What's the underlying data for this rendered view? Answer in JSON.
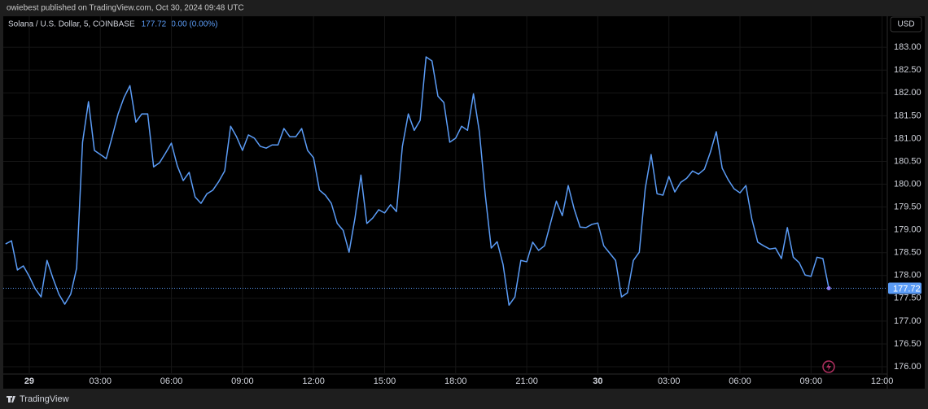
{
  "publisher": "owiebest published on TradingView.com, Oct 30, 2024 09:48 UTC",
  "footer": "TradingView",
  "chart_data": {
    "type": "line",
    "title": "Solana / U.S. Dollar, 5, COINBASE",
    "last_price": 177.72,
    "change": "0.00 (0.00%)",
    "currency": "USD",
    "color": "#5b9cf6",
    "grid": true,
    "xlim": [
      -0.96,
      36.15
    ],
    "xticks": [
      {
        "value": 0,
        "label": "29"
      },
      {
        "value": 3,
        "label": "03:00"
      },
      {
        "value": 6,
        "label": "06:00"
      },
      {
        "value": 9,
        "label": "09:00"
      },
      {
        "value": 12,
        "label": "12:00"
      },
      {
        "value": 15,
        "label": "15:00"
      },
      {
        "value": 18,
        "label": "18:00"
      },
      {
        "value": 21,
        "label": "21:00"
      },
      {
        "value": 24,
        "label": "30"
      },
      {
        "value": 27,
        "label": "03:00"
      },
      {
        "value": 30,
        "label": "06:00"
      },
      {
        "value": 33,
        "label": "09:00"
      },
      {
        "value": 36,
        "label": "12:00"
      }
    ],
    "ylim": [
      175.84,
      183.68
    ],
    "yticks": [
      {
        "value": 176,
        "label": "176.00"
      },
      {
        "value": 176.5,
        "label": "176.50"
      },
      {
        "value": 177,
        "label": "177.00"
      },
      {
        "value": 177.5,
        "label": "177.50"
      },
      {
        "value": 178,
        "label": "178.00"
      },
      {
        "value": 178.5,
        "label": "178.50"
      },
      {
        "value": 179,
        "label": "179.00"
      },
      {
        "value": 179.5,
        "label": "179.50"
      },
      {
        "value": 180,
        "label": "180.00"
      },
      {
        "value": 180.5,
        "label": "180.50"
      },
      {
        "value": 181,
        "label": "181.00"
      },
      {
        "value": 181.5,
        "label": "181.50"
      },
      {
        "value": 182,
        "label": "182.00"
      },
      {
        "value": 182.5,
        "label": "182.50"
      },
      {
        "value": 183,
        "label": "183.00"
      }
    ],
    "x": [
      -1,
      -0.75,
      -0.5,
      -0.25,
      0,
      0.25,
      0.5,
      0.75,
      1,
      1.25,
      1.5,
      1.75,
      2,
      2.25,
      2.5,
      2.75,
      3,
      3.25,
      3.5,
      3.75,
      4,
      4.25,
      4.5,
      4.75,
      5,
      5.25,
      5.5,
      5.75,
      6,
      6.25,
      6.5,
      6.75,
      7,
      7.25,
      7.5,
      7.75,
      8,
      8.25,
      8.5,
      8.75,
      9,
      9.25,
      9.5,
      9.75,
      10,
      10.25,
      10.5,
      10.75,
      11,
      11.25,
      11.5,
      11.75,
      12,
      12.25,
      12.5,
      12.75,
      13,
      13.25,
      13.5,
      13.75,
      14,
      14.25,
      14.5,
      14.75,
      15,
      15.25,
      15.5,
      15.75,
      16,
      16.25,
      16.5,
      16.75,
      17,
      17.25,
      17.5,
      17.75,
      18,
      18.25,
      18.5,
      18.75,
      19,
      19.25,
      19.5,
      19.75,
      20,
      20.25,
      20.5,
      20.75,
      21,
      21.25,
      21.5,
      21.75,
      22,
      22.25,
      22.5,
      22.75,
      23,
      23.25,
      23.5,
      23.75,
      24,
      24.25,
      24.5,
      24.75,
      25,
      25.25,
      25.5,
      25.75,
      26,
      26.25,
      26.5,
      26.75,
      27,
      27.25,
      27.5,
      27.75,
      28,
      28.25,
      28.5,
      28.75,
      29,
      29.25,
      29.5,
      29.75,
      30,
      30.25,
      30.5,
      30.75,
      31,
      31.25,
      31.5,
      31.75,
      32,
      32.25,
      32.5,
      32.75,
      33,
      33.25,
      33.5,
      33.75
    ],
    "values": [
      178.69,
      178.76,
      178.12,
      178.21,
      177.98,
      177.71,
      177.53,
      178.33,
      177.94,
      177.59,
      177.37,
      177.59,
      178.16,
      180.92,
      181.81,
      180.74,
      180.65,
      180.56,
      181.04,
      181.54,
      181.9,
      182.16,
      181.36,
      181.54,
      181.54,
      180.38,
      180.47,
      180.68,
      180.9,
      180.4,
      180.08,
      180.26,
      179.72,
      179.58,
      179.79,
      179.87,
      180.06,
      180.29,
      181.27,
      181.04,
      180.74,
      181.08,
      181.01,
      180.83,
      180.79,
      180.86,
      180.86,
      181.22,
      181.04,
      181.04,
      181.22,
      180.74,
      180.58,
      179.87,
      179.76,
      179.58,
      179.14,
      178.99,
      178.51,
      179.26,
      180.2,
      179.14,
      179.26,
      179.44,
      179.37,
      179.55,
      179.4,
      180.83,
      181.54,
      181.18,
      181.4,
      182.79,
      182.7,
      181.93,
      181.79,
      180.92,
      181.01,
      181.27,
      181.18,
      181.98,
      181.15,
      179.76,
      178.6,
      178.74,
      178.24,
      177.35,
      177.53,
      178.33,
      178.3,
      178.73,
      178.55,
      178.65,
      179.14,
      179.63,
      179.31,
      179.97,
      179.46,
      179.06,
      179.05,
      179.12,
      179.15,
      178.65,
      178.49,
      178.33,
      177.53,
      177.62,
      178.33,
      178.51,
      179.9,
      180.65,
      179.79,
      179.76,
      180.17,
      179.83,
      180.04,
      180.13,
      180.29,
      180.22,
      180.33,
      180.7,
      181.15,
      180.35,
      180.1,
      179.9,
      179.81,
      179.97,
      179.24,
      178.73,
      178.65,
      178.58,
      178.6,
      178.37,
      179.05,
      178.4,
      178.28,
      178.01,
      177.98,
      178.4,
      178.37,
      177.72
    ]
  }
}
